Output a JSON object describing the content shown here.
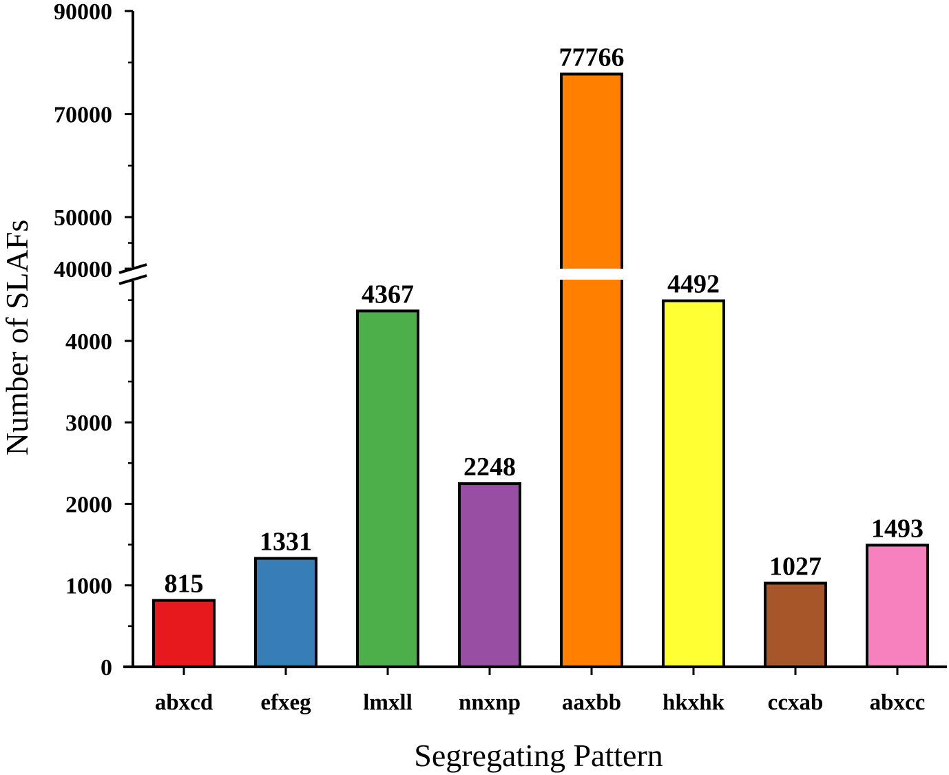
{
  "chart_data": {
    "type": "bar",
    "xlabel": "Segregating Pattern",
    "ylabel": "Number of SLAFs",
    "categories": [
      "abxcd",
      "efxeg",
      "lmxll",
      "nnxnp",
      "aaxbb",
      "hkxhk",
      "ccxab",
      "abxcc"
    ],
    "values": [
      815,
      1331,
      4367,
      2248,
      77766,
      4492,
      1027,
      1493
    ],
    "data_labels": [
      "815",
      "1331",
      "4367",
      "2248",
      "77766",
      "4492",
      "1027",
      "1493"
    ],
    "colors": [
      "#e8191c",
      "#377eb8",
      "#4daf4a",
      "#984ea3",
      "#ff7f00",
      "#ffff33",
      "#a65628",
      "#f781bf"
    ],
    "y_axis_broken": true,
    "y_segments": [
      {
        "range": [
          0,
          4700
        ],
        "ticks": [
          "0",
          "1000",
          "2000",
          "3000",
          "4000"
        ]
      },
      {
        "range": [
          40000,
          90000
        ],
        "ticks": [
          "40000",
          "50000",
          "70000",
          "90000"
        ]
      }
    ],
    "grid": false,
    "legend": "none"
  }
}
